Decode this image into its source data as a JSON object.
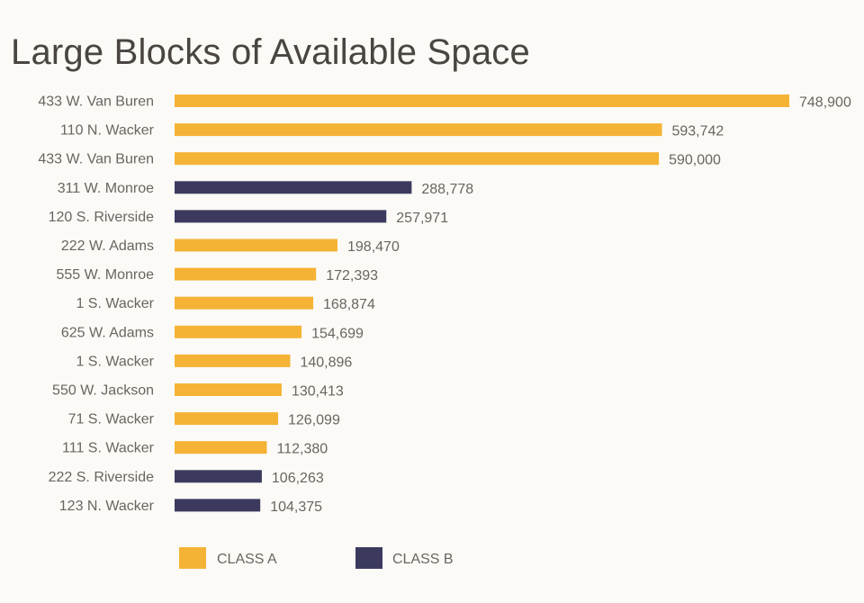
{
  "page": {
    "title": "Large Blocks of Available Space"
  },
  "chart_data": {
    "type": "bar",
    "orientation": "horizontal",
    "title": "Large Blocks of Available Space",
    "xlabel": "",
    "ylabel": "",
    "grid": false,
    "legend_position": "bottom-left",
    "xlim": [
      0,
      748900
    ],
    "colors": {
      "CLASS A": "#f5b335",
      "CLASS B": "#3b3a5e"
    },
    "legend": [
      {
        "label": "CLASS A",
        "key": "CLASS A"
      },
      {
        "label": "CLASS B",
        "key": "CLASS B"
      }
    ],
    "bars": [
      {
        "category": "433 W. Van Buren",
        "value": 748900,
        "value_label": "748,900",
        "class": "CLASS A"
      },
      {
        "category": "110 N. Wacker",
        "value": 593742,
        "value_label": "593,742",
        "class": "CLASS A"
      },
      {
        "category": "433 W. Van Buren",
        "value": 590000,
        "value_label": "590,000",
        "class": "CLASS A"
      },
      {
        "category": "311 W. Monroe",
        "value": 288778,
        "value_label": "288,778",
        "class": "CLASS B"
      },
      {
        "category": "120 S. Riverside",
        "value": 257971,
        "value_label": "257,971",
        "class": "CLASS B"
      },
      {
        "category": "222 W. Adams",
        "value": 198470,
        "value_label": "198,470",
        "class": "CLASS A"
      },
      {
        "category": "555 W. Monroe",
        "value": 172393,
        "value_label": "172,393",
        "class": "CLASS A"
      },
      {
        "category": "1 S. Wacker",
        "value": 168874,
        "value_label": "168,874",
        "class": "CLASS A"
      },
      {
        "category": "625 W. Adams",
        "value": 154699,
        "value_label": "154,699",
        "class": "CLASS A"
      },
      {
        "category": "1 S. Wacker",
        "value": 140896,
        "value_label": "140,896",
        "class": "CLASS A"
      },
      {
        "category": "550 W. Jackson",
        "value": 130413,
        "value_label": "130,413",
        "class": "CLASS A"
      },
      {
        "category": "71 S. Wacker",
        "value": 126099,
        "value_label": "126,099",
        "class": "CLASS A"
      },
      {
        "category": "111 S. Wacker",
        "value": 112380,
        "value_label": "112,380",
        "class": "CLASS A"
      },
      {
        "category": "222 S. Riverside",
        "value": 106263,
        "value_label": "106,263",
        "class": "CLASS B"
      },
      {
        "category": "123 N. Wacker",
        "value": 104375,
        "value_label": "104,375",
        "class": "CLASS B"
      }
    ]
  }
}
